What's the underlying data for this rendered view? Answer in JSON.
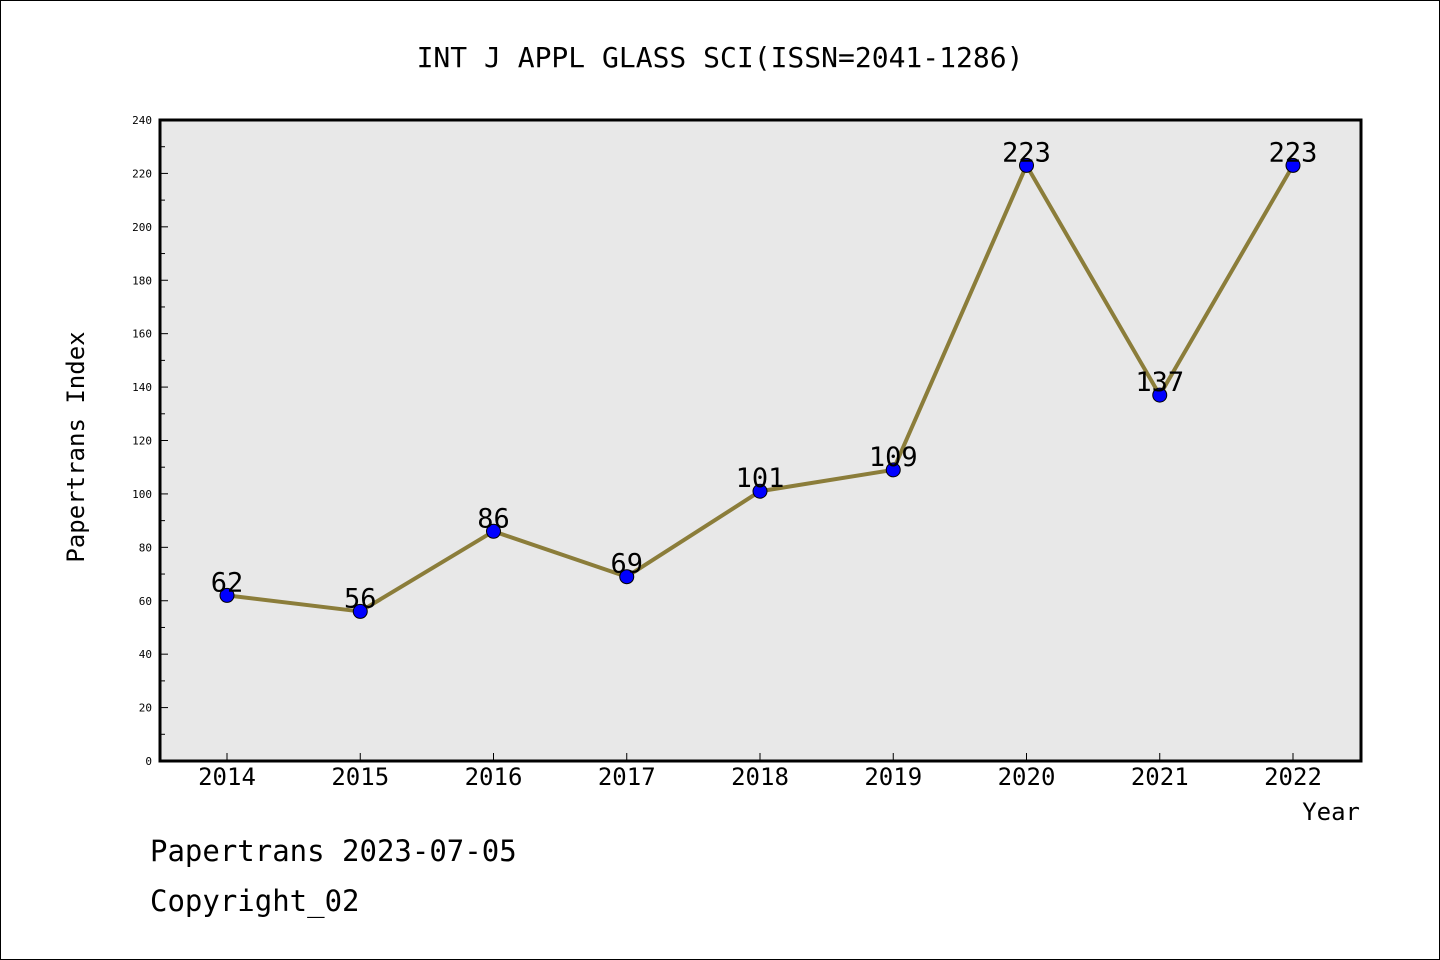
{
  "footer": {
    "date_line": "Papertrans 2023-07-05",
    "copyright_line": "Copyright_02"
  },
  "chart_data": {
    "type": "line",
    "title": "INT J APPL GLASS SCI(ISSN=2041-1286)",
    "xlabel": "Year",
    "ylabel": "Papertrans Index",
    "categories": [
      "2014",
      "2015",
      "2016",
      "2017",
      "2018",
      "2019",
      "2020",
      "2021",
      "2022"
    ],
    "series": [
      {
        "values": [
          62,
          56,
          86,
          69,
          101,
          109,
          223,
          137,
          223
        ],
        "line_color": "#8b7d3a",
        "marker_color": "#0000ff"
      }
    ],
    "data_labels": [
      "62",
      "56",
      "86",
      "69",
      "101",
      "109",
      "223",
      "137",
      "223"
    ],
    "ylim": [
      0,
      240
    ],
    "yticks": [
      "0",
      "20",
      "40",
      "60",
      "80",
      "100",
      "120",
      "140",
      "160",
      "180",
      "200",
      "220",
      "240"
    ],
    "plot_background": "#e8e8e8",
    "grid": false,
    "legend": "none"
  }
}
